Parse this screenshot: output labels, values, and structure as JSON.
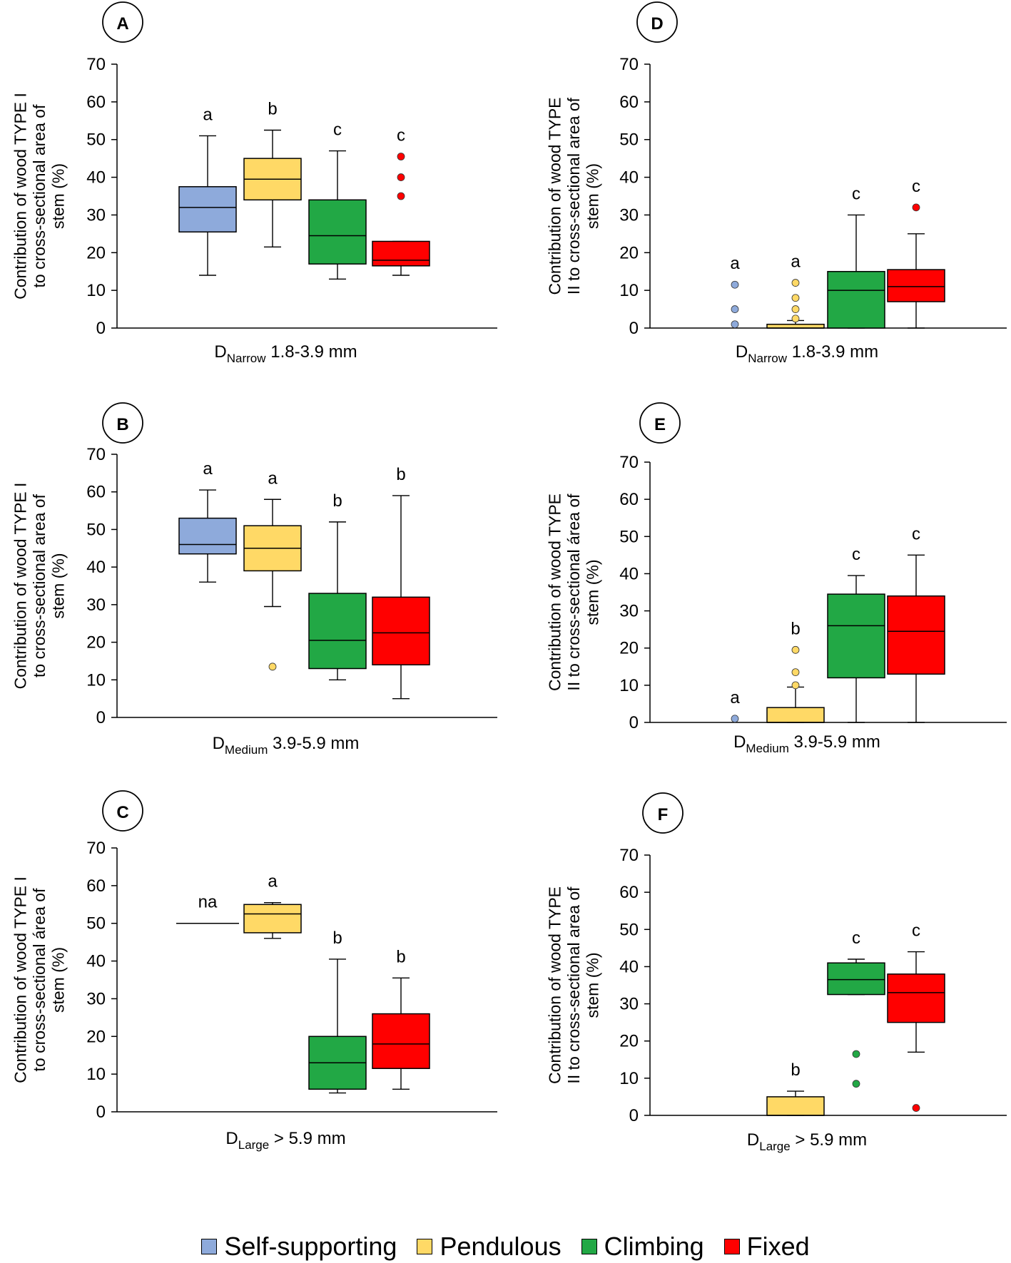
{
  "legend": [
    {
      "label": "Self-supporting",
      "color": "#8eaadb"
    },
    {
      "label": "Pendulous",
      "color": "#ffd966"
    },
    {
      "label": "Climbing",
      "color": "#22a845"
    },
    {
      "label": "Fixed",
      "color": "#ff0000"
    }
  ],
  "chart_data": [
    {
      "type": "box",
      "panel": "A",
      "ylabel": [
        "Contribution of wood TYPE I",
        "to cross-sectional  area of",
        "stem (%)"
      ],
      "xlabel": {
        "main": "D",
        "sub": "Narrow",
        "rest": " 1.8-3.9 mm"
      },
      "ylim": [
        0,
        70
      ],
      "yticks": [
        0,
        10,
        20,
        30,
        40,
        50,
        60,
        70
      ],
      "boxes": [
        {
          "group": "Self-supporting",
          "min": 14,
          "q1": 25.5,
          "median": 32,
          "q3": 37.5,
          "max": 51,
          "outliers": [],
          "letter": "a"
        },
        {
          "group": "Pendulous",
          "min": 21.5,
          "q1": 34,
          "median": 39.5,
          "q3": 45,
          "max": 52.5,
          "outliers": [],
          "letter": "b"
        },
        {
          "group": "Climbing",
          "min": 13,
          "q1": 17,
          "median": 24.5,
          "q3": 34,
          "max": 47,
          "outliers": [],
          "letter": "c"
        },
        {
          "group": "Fixed",
          "min": 14,
          "q1": 16.5,
          "median": 18,
          "q3": 23,
          "max": 23,
          "outliers": [
            35,
            40,
            45.5
          ],
          "letter": "c"
        }
      ]
    },
    {
      "type": "box",
      "panel": "B",
      "ylabel": [
        "Contribution of wood TYPE I",
        "to   cross-sectional   area   of",
        "stem (%)"
      ],
      "xlabel": {
        "main": "D",
        "sub": "Medium",
        "rest": " 3.9-5.9 mm"
      },
      "ylim": [
        0,
        70
      ],
      "yticks": [
        0,
        10,
        20,
        30,
        40,
        50,
        60,
        70
      ],
      "boxes": [
        {
          "group": "Self-supporting",
          "min": 36,
          "q1": 43.5,
          "median": 46,
          "q3": 53,
          "max": 60.5,
          "outliers": [],
          "letter": "a"
        },
        {
          "group": "Pendulous",
          "min": 29.5,
          "q1": 39,
          "median": 45,
          "q3": 51,
          "max": 58,
          "outliers": [
            13.5
          ],
          "letter": "a"
        },
        {
          "group": "Climbing",
          "min": 10,
          "q1": 13,
          "median": 20.5,
          "q3": 33,
          "max": 52,
          "outliers": [],
          "letter": "b"
        },
        {
          "group": "Fixed",
          "min": 5,
          "q1": 14,
          "median": 22.5,
          "q3": 32,
          "max": 59,
          "outliers": [],
          "letter": "b"
        }
      ]
    },
    {
      "type": "box",
      "panel": "C",
      "ylabel": [
        "Contribution of wood TYPE I",
        "to cross-sectional área of",
        "stem (%)"
      ],
      "xlabel": {
        "main": "D",
        "sub": "Large",
        "rest": " > 5.9 mm"
      },
      "ylim": [
        0,
        70
      ],
      "yticks": [
        0,
        10,
        20,
        30,
        40,
        50,
        60,
        70
      ],
      "boxes": [
        {
          "group": "Self-supporting",
          "single": 50,
          "outliers": [],
          "letter": "na"
        },
        {
          "group": "Pendulous",
          "min": 46,
          "q1": 47.5,
          "median": 52.5,
          "q3": 55,
          "max": 55.5,
          "outliers": [],
          "letter": "a"
        },
        {
          "group": "Climbing",
          "min": 5,
          "q1": 6,
          "median": 13,
          "q3": 20,
          "max": 40.5,
          "outliers": [],
          "letter": "b"
        },
        {
          "group": "Fixed",
          "min": 6,
          "q1": 11.5,
          "median": 18,
          "q3": 26,
          "max": 35.5,
          "outliers": [],
          "letter": "b"
        }
      ]
    },
    {
      "type": "box",
      "panel": "D",
      "ylabel": [
        "Contribution of wood TYPE",
        "II to cross-sectional area of",
        "stem (%)"
      ],
      "xlabel": {
        "main": "D",
        "sub": "Narrow",
        "rest": " 1.8-3.9 mm"
      },
      "ylim": [
        0,
        70
      ],
      "yticks": [
        0,
        10,
        20,
        30,
        40,
        50,
        60,
        70
      ],
      "boxes": [
        {
          "group": "Self-supporting",
          "none": true,
          "outliers": [
            1,
            5,
            11.5
          ],
          "letter": "a"
        },
        {
          "group": "Pendulous",
          "min": 0,
          "q1": 0,
          "median": 0,
          "q3": 1,
          "max": 2,
          "outliers": [
            2.5,
            5,
            8,
            12
          ],
          "letter": "a"
        },
        {
          "group": "Climbing",
          "min": 0,
          "q1": 0,
          "median": 10,
          "q3": 15,
          "max": 30,
          "outliers": [],
          "letter": "c"
        },
        {
          "group": "Fixed",
          "min": 0,
          "q1": 7,
          "median": 11,
          "q3": 15.5,
          "max": 25,
          "outliers": [
            32
          ],
          "letter": "c"
        }
      ]
    },
    {
      "type": "box",
      "panel": "E",
      "ylabel": [
        "Contribution of wood TYPE",
        "II to cross-sectional área of",
        "stem (%)"
      ],
      "xlabel": {
        "main": "D",
        "sub": "Medium",
        "rest": " 3.9-5.9 mm"
      },
      "ylim": [
        0,
        70
      ],
      "yticks": [
        0,
        10,
        20,
        30,
        40,
        50,
        60,
        70
      ],
      "boxes": [
        {
          "group": "Self-supporting",
          "none": true,
          "outliers": [
            1
          ],
          "letter": "a"
        },
        {
          "group": "Pendulous",
          "min": 0,
          "q1": 0,
          "median": 0,
          "q3": 4,
          "max": 9.5,
          "outliers": [
            10,
            13.5,
            19.5
          ],
          "letter": "b"
        },
        {
          "group": "Climbing",
          "min": 0,
          "q1": 12,
          "median": 26,
          "q3": 34.5,
          "max": 39.5,
          "outliers": [],
          "letter": "c"
        },
        {
          "group": "Fixed",
          "min": 0,
          "q1": 13,
          "median": 24.5,
          "q3": 34,
          "max": 45,
          "outliers": [],
          "letter": "c"
        }
      ]
    },
    {
      "type": "box",
      "panel": "F",
      "ylabel": [
        "Contribution of wood TYPE",
        "II to cross-sectional area of",
        "stem (%)"
      ],
      "xlabel": {
        "main": "D",
        "sub": "Large",
        "rest": " > 5.9 mm"
      },
      "ylim": [
        0,
        70
      ],
      "yticks": [
        0,
        10,
        20,
        30,
        40,
        50,
        60,
        70
      ],
      "boxes": [
        {
          "group": "Self-supporting",
          "none": true,
          "outliers": [],
          "letter": ""
        },
        {
          "group": "Pendulous",
          "min": 0,
          "q1": 0,
          "median": 0,
          "q3": 5,
          "max": 6.5,
          "outliers": [],
          "letter": "b"
        },
        {
          "group": "Climbing",
          "min": 32.5,
          "q1": 32.5,
          "median": 36.5,
          "q3": 41,
          "max": 42,
          "outliers": [
            8.5,
            16.5
          ],
          "letter": "c"
        },
        {
          "group": "Fixed",
          "min": 17,
          "q1": 25,
          "median": 33,
          "q3": 38,
          "max": 44,
          "outliers": [
            2
          ],
          "letter": "c"
        }
      ]
    }
  ]
}
